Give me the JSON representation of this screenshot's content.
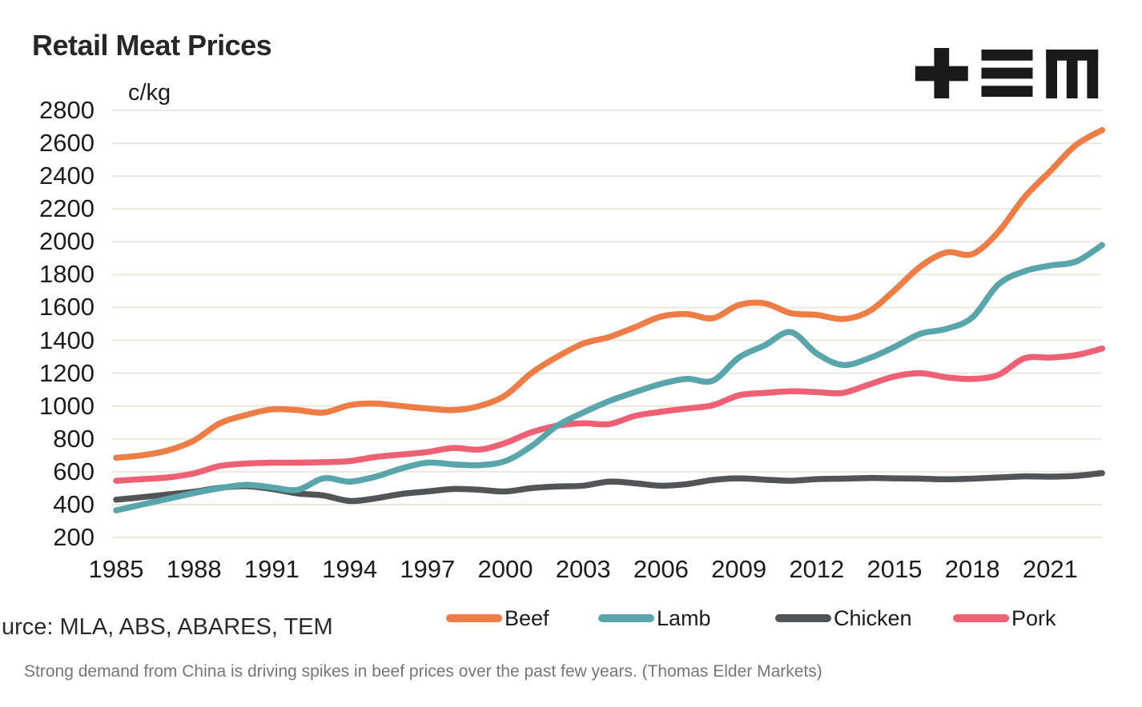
{
  "header": {
    "title": "Retail Meat Prices",
    "unit_label": "c/kg",
    "logo_name": "TEM"
  },
  "chart_data": {
    "type": "line",
    "title": "Retail Meat Prices",
    "xlabel": "",
    "ylabel": "c/kg",
    "ylim": [
      200,
      2800
    ],
    "y_tick_step": 200,
    "y_ticks": [
      200,
      400,
      600,
      800,
      1000,
      1200,
      1400,
      1600,
      1800,
      2000,
      2200,
      2400,
      2600,
      2800
    ],
    "x_tick_labels": [
      1985,
      1988,
      1991,
      1994,
      1997,
      2000,
      2003,
      2006,
      2009,
      2012,
      2015,
      2018,
      2021
    ],
    "grid": "horizontal",
    "legend_position": "bottom",
    "x": [
      1985,
      1986,
      1987,
      1988,
      1989,
      1990,
      1991,
      1992,
      1993,
      1994,
      1995,
      1996,
      1997,
      1998,
      1999,
      2000,
      2001,
      2002,
      2003,
      2004,
      2005,
      2006,
      2007,
      2008,
      2009,
      2010,
      2011,
      2012,
      2013,
      2014,
      2015,
      2016,
      2017,
      2018,
      2019,
      2020,
      2021,
      2022,
      2023
    ],
    "series": [
      {
        "name": "Beef",
        "color": "#ed7c45",
        "values": [
          685,
          700,
          730,
          790,
          895,
          945,
          980,
          975,
          960,
          1005,
          1015,
          1000,
          985,
          975,
          1000,
          1065,
          1200,
          1300,
          1380,
          1420,
          1480,
          1545,
          1560,
          1535,
          1615,
          1625,
          1565,
          1555,
          1530,
          1575,
          1705,
          1850,
          1935,
          1925,
          2060,
          2270,
          2430,
          2590,
          2680
        ]
      },
      {
        "name": "Lamb",
        "color": "#58a5ab",
        "values": [
          365,
          400,
          435,
          470,
          500,
          520,
          505,
          490,
          560,
          540,
          570,
          620,
          655,
          645,
          640,
          665,
          755,
          880,
          960,
          1030,
          1085,
          1135,
          1165,
          1155,
          1295,
          1370,
          1450,
          1320,
          1250,
          1290,
          1360,
          1440,
          1470,
          1540,
          1740,
          1820,
          1855,
          1880,
          1980
        ]
      },
      {
        "name": "Chicken",
        "color": "#515558",
        "values": [
          430,
          445,
          462,
          478,
          502,
          512,
          495,
          468,
          455,
          422,
          438,
          465,
          480,
          495,
          490,
          480,
          500,
          510,
          515,
          540,
          530,
          515,
          525,
          550,
          560,
          552,
          545,
          555,
          558,
          562,
          560,
          558,
          554,
          558,
          565,
          572,
          570,
          575,
          592
        ]
      },
      {
        "name": "Pork",
        "color": "#ee6073",
        "values": [
          545,
          555,
          565,
          590,
          635,
          650,
          655,
          655,
          658,
          665,
          690,
          705,
          720,
          745,
          735,
          775,
          840,
          880,
          895,
          890,
          940,
          965,
          985,
          1005,
          1065,
          1080,
          1090,
          1085,
          1080,
          1130,
          1180,
          1200,
          1175,
          1165,
          1190,
          1290,
          1295,
          1310,
          1350
        ]
      }
    ]
  },
  "footer": {
    "source_text": "urce: MLA, ABS, ABARES, TEM",
    "caption": "Strong demand from China is driving spikes in beef prices over the past few years. (Thomas Elder Markets)"
  },
  "colors": {
    "background": "#ffffff",
    "title": "#272727",
    "text": "#1c1c1c",
    "gridline": "#eae7dd",
    "source": "#2b2b2b",
    "caption": "#767676",
    "logo": "#1a1a1a"
  }
}
